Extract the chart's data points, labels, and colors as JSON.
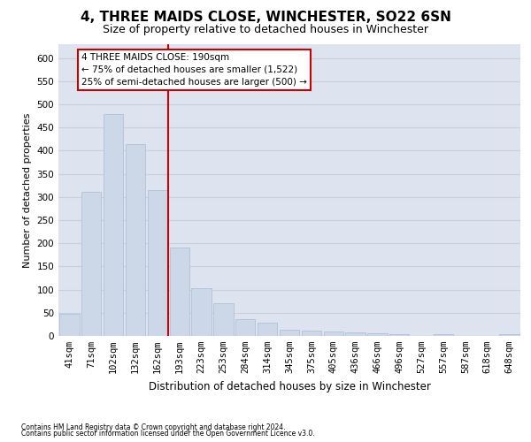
{
  "title": "4, THREE MAIDS CLOSE, WINCHESTER, SO22 6SN",
  "subtitle": "Size of property relative to detached houses in Winchester",
  "xlabel": "Distribution of detached houses by size in Winchester",
  "ylabel": "Number of detached properties",
  "footnote1": "Contains HM Land Registry data © Crown copyright and database right 2024.",
  "footnote2": "Contains public sector information licensed under the Open Government Licence v3.0.",
  "bar_labels": [
    "41sqm",
    "71sqm",
    "102sqm",
    "132sqm",
    "162sqm",
    "193sqm",
    "223sqm",
    "253sqm",
    "284sqm",
    "314sqm",
    "345sqm",
    "375sqm",
    "405sqm",
    "436sqm",
    "466sqm",
    "496sqm",
    "527sqm",
    "557sqm",
    "587sqm",
    "618sqm",
    "648sqm"
  ],
  "bar_values": [
    47,
    312,
    480,
    415,
    315,
    190,
    103,
    70,
    37,
    29,
    13,
    12,
    9,
    7,
    5,
    3,
    0,
    4,
    0,
    0,
    4
  ],
  "bar_color": "#ccd8e8",
  "bar_edge_color": "#aabcd4",
  "vline_bar_index": 5,
  "vline_color": "#cc0000",
  "annotation_line1": "4 THREE MAIDS CLOSE: 190sqm",
  "annotation_line2": "← 75% of detached houses are smaller (1,522)",
  "annotation_line3": "25% of semi-detached houses are larger (500) →",
  "annotation_box_color": "#cc0000",
  "ylim": [
    0,
    630
  ],
  "yticks": [
    0,
    50,
    100,
    150,
    200,
    250,
    300,
    350,
    400,
    450,
    500,
    550,
    600
  ],
  "grid_color": "#c8d0dc",
  "bg_color": "#dde4ef",
  "title_fontsize": 11,
  "subtitle_fontsize": 9,
  "xlabel_fontsize": 8.5,
  "ylabel_fontsize": 8,
  "tick_fontsize": 7.5,
  "annot_fontsize": 7.5
}
